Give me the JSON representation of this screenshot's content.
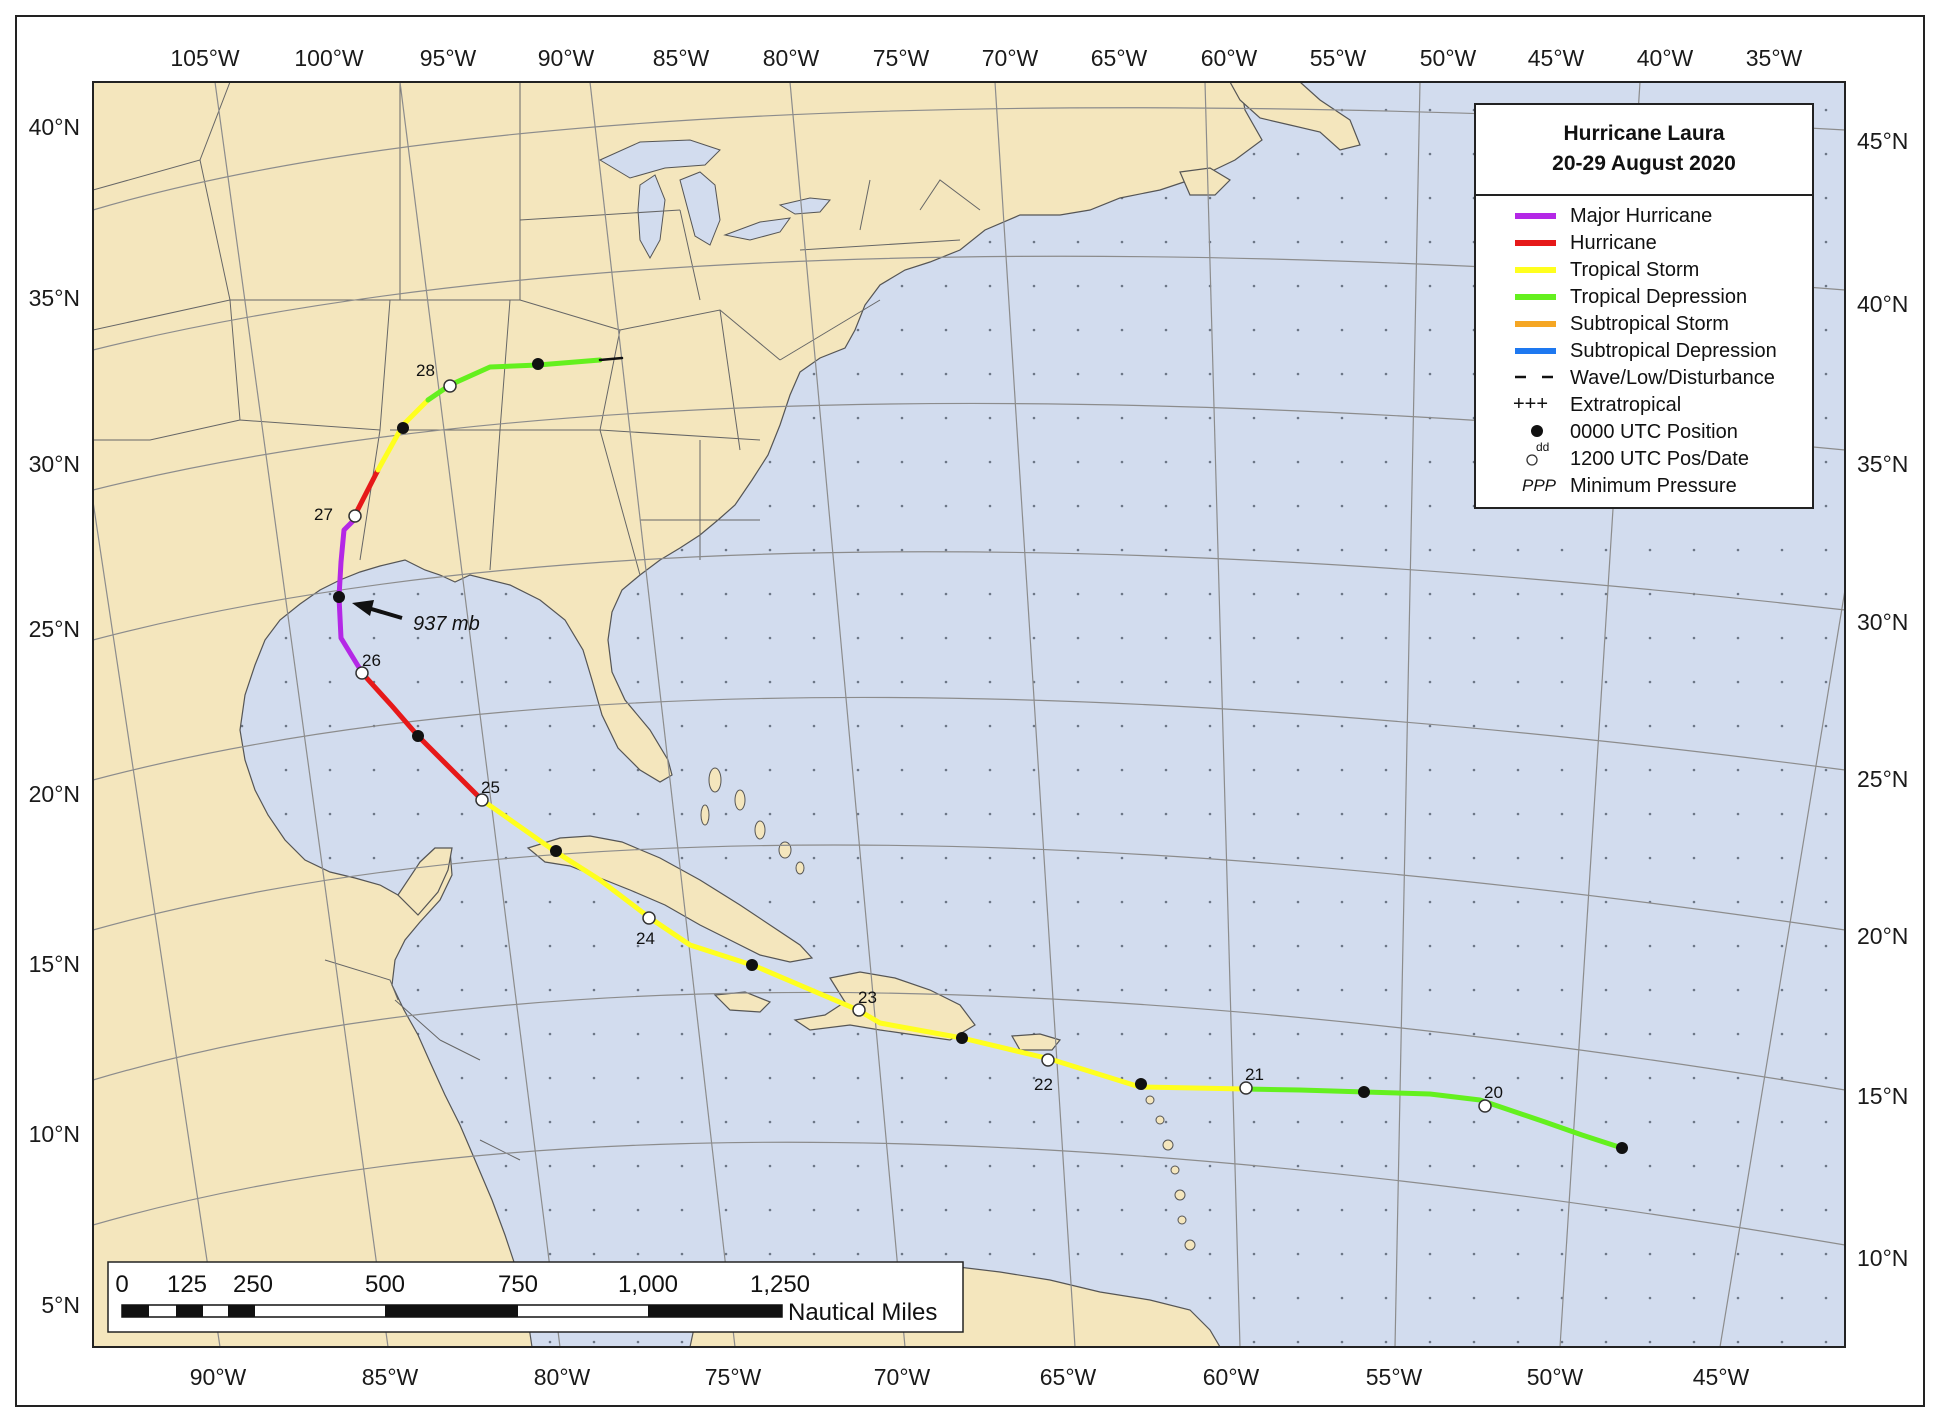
{
  "legend": {
    "title_line1": "Hurricane Laura",
    "title_line2": "20-29 August 2020",
    "items": [
      {
        "label": "Major Hurricane",
        "kind": "line",
        "color": "#b428e6"
      },
      {
        "label": "Hurricane",
        "kind": "line",
        "color": "#e61919"
      },
      {
        "label": "Tropical Storm",
        "kind": "line",
        "color": "#ffff1e"
      },
      {
        "label": "Tropical Depression",
        "kind": "line",
        "color": "#64f01e"
      },
      {
        "label": "Subtropical Storm",
        "kind": "line",
        "color": "#f5a623"
      },
      {
        "label": "Subtropical Depression",
        "kind": "line",
        "color": "#1e78f0"
      },
      {
        "label": "Wave/Low/Disturbance",
        "kind": "dash",
        "color": "#000000"
      },
      {
        "label": "Extratropical",
        "kind": "plus",
        "symbol": "+++"
      },
      {
        "label": "0000 UTC Position",
        "kind": "dot"
      },
      {
        "label": "1200 UTC Pos/Date",
        "kind": "circle",
        "symbol": "dd"
      },
      {
        "label": "Minimum Pressure",
        "kind": "ppp",
        "symbol": "PPP"
      }
    ]
  },
  "top_longitude_labels": [
    "105°W",
    "100°W",
    "95°W",
    "90°W",
    "85°W",
    "80°W",
    "75°W",
    "70°W",
    "65°W",
    "60°W",
    "55°W",
    "50°W",
    "45°W",
    "40°W",
    "35°W"
  ],
  "bottom_longitude_labels": [
    "90°W",
    "85°W",
    "80°W",
    "75°W",
    "70°W",
    "65°W",
    "60°W",
    "55°W",
    "50°W",
    "45°W"
  ],
  "left_latitude_labels": [
    "40°N",
    "35°N",
    "30°N",
    "25°N",
    "20°N",
    "15°N",
    "10°N",
    "5°N"
  ],
  "right_latitude_labels": [
    "45°N",
    "40°N",
    "35°N",
    "30°N",
    "25°N",
    "20°N",
    "15°N",
    "10°N"
  ],
  "date_labels": [
    "20",
    "21",
    "22",
    "23",
    "24",
    "25",
    "26",
    "27",
    "28"
  ],
  "minimum_pressure": "937 mb",
  "scale_bar": {
    "ticks": [
      "0",
      "125",
      "250",
      "500",
      "750",
      "1,000",
      "1,250"
    ],
    "unit": "Nautical Miles"
  },
  "colors": {
    "land": "#f4e6bd",
    "ocean": "#d2dcee",
    "major_hurricane": "#b428e6",
    "hurricane": "#e61919",
    "tropical_storm": "#ffff1e",
    "tropical_depression": "#64f01e"
  }
}
